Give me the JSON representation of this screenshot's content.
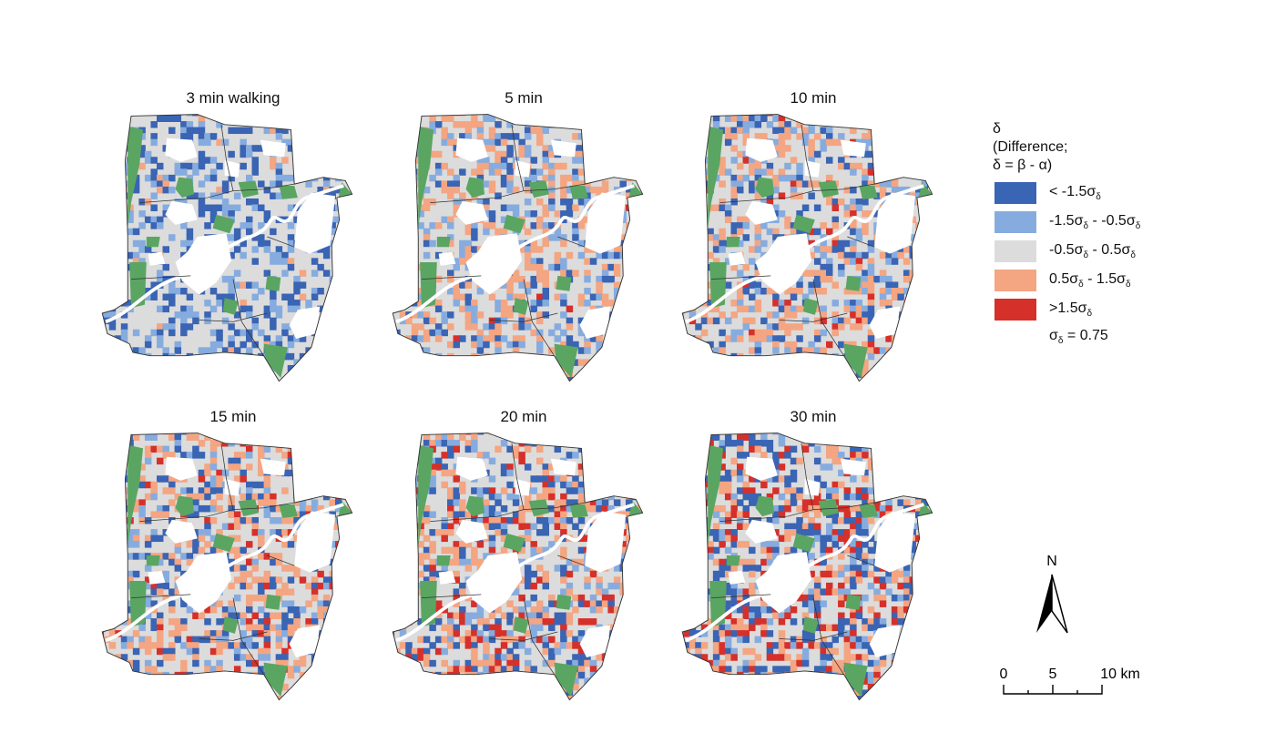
{
  "panels": [
    {
      "title": "3 min walking",
      "level": 0
    },
    {
      "title": "5 min",
      "level": 1
    },
    {
      "title": "10 min",
      "level": 2
    },
    {
      "title": "15 min",
      "level": 3
    },
    {
      "title": "20 min",
      "level": 4
    },
    {
      "title": "30 min",
      "level": 5
    }
  ],
  "legend": {
    "symbol": "δ",
    "line2": "(Difference;",
    "line3": "δ = β - α)",
    "items": [
      {
        "label": "< -1.5σδ",
        "color": "#3a64b4"
      },
      {
        "label": "-1.5σδ - -0.5σδ",
        "color": "#86acdf"
      },
      {
        "label": "-0.5σδ - 0.5σδ",
        "color": "#dcdcdc"
      },
      {
        "label": "0.5σδ - 1.5σδ",
        "color": "#f4a582"
      },
      {
        "label": ">1.5σδ",
        "color": "#d6302a"
      }
    ],
    "sigma_note": "σδ = 0.75"
  },
  "map_colors": {
    "green": "#5aa562",
    "boundary": "#333333",
    "river": "#ffffff"
  },
  "north_arrow": {
    "label": "N"
  },
  "scale_bar": {
    "labels": [
      "0",
      "5",
      "10 km"
    ]
  }
}
